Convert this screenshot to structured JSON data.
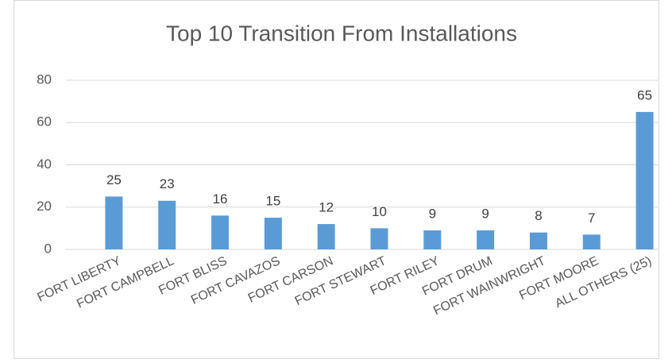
{
  "chart_data": {
    "type": "bar",
    "title": "Top 10 Transition From Installations",
    "categories": [
      "FORT LIBERTY",
      "FORT CAMPBELL",
      "FORT BLISS",
      "FORT CAVAZOS",
      "FORT CARSON",
      "FORT STEWART",
      "FORT RILEY",
      "FORT DRUM",
      "FORT WAINWRIGHT",
      "FORT MOORE",
      "ALL OTHERS (25)"
    ],
    "values": [
      25,
      23,
      16,
      15,
      12,
      10,
      9,
      9,
      8,
      7,
      65
    ],
    "color": "#5b9bd5",
    "ylim": [
      0,
      80
    ],
    "yticks": [
      0,
      20,
      40,
      60,
      80
    ],
    "grid": true
  }
}
